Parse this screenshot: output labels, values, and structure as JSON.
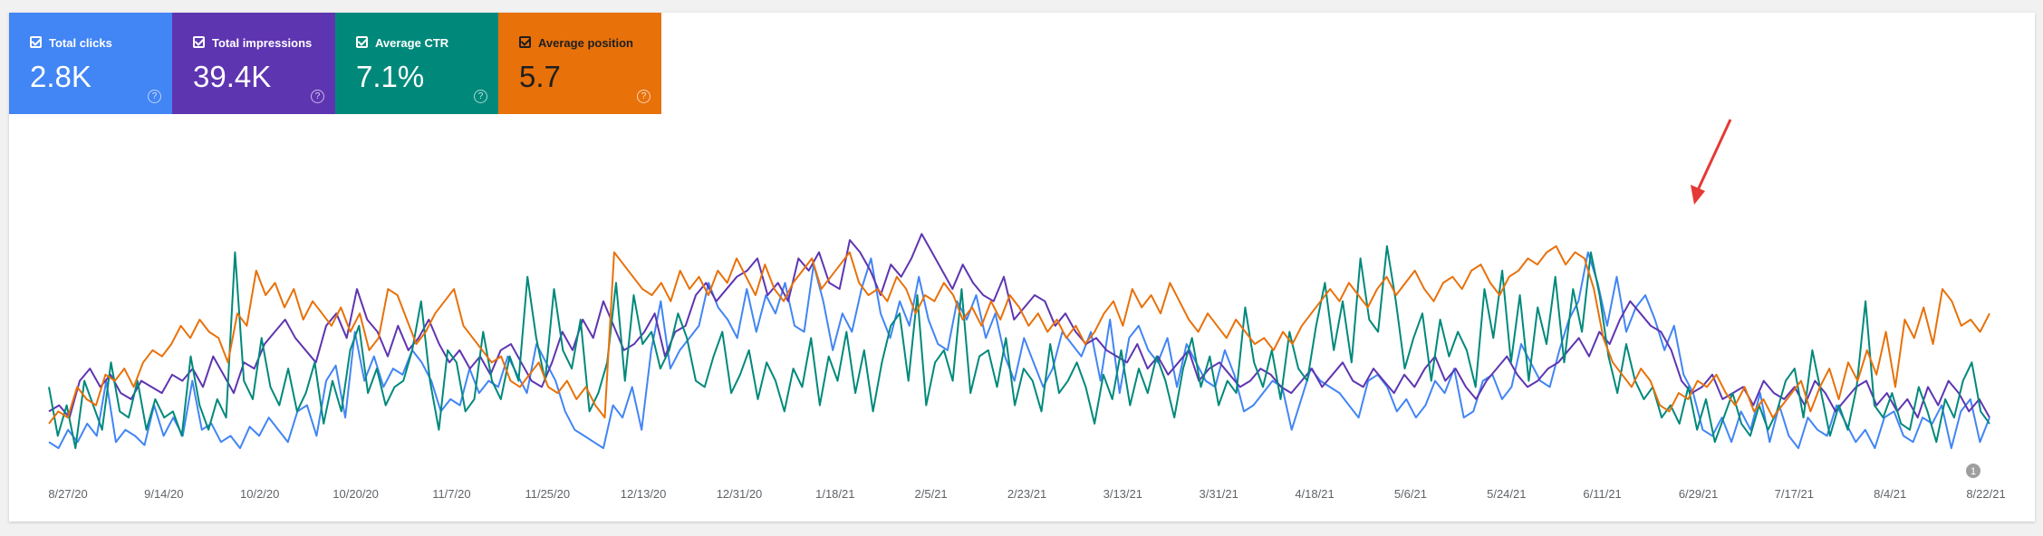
{
  "metrics": [
    {
      "label": "Total clicks",
      "value": "2.8K",
      "color": "#4285f4"
    },
    {
      "label": "Total impressions",
      "value": "39.4K",
      "color": "#5e35b1"
    },
    {
      "label": "Average CTR",
      "value": "7.1%",
      "color": "#00897b"
    },
    {
      "label": "Average position",
      "value": "5.7",
      "color": "#e8710a"
    }
  ],
  "help_icon": "?",
  "annotation_badge": "1",
  "chart_data": {
    "type": "line",
    "x_ticks": [
      "8/27/20",
      "9/14/20",
      "10/2/20",
      "10/20/20",
      "11/7/20",
      "11/25/20",
      "12/13/20",
      "12/31/20",
      "1/18/21",
      "2/5/21",
      "2/23/21",
      "3/13/21",
      "3/31/21",
      "4/18/21",
      "5/6/21",
      "5/24/21",
      "6/11/21",
      "6/29/21",
      "7/17/21",
      "8/4/21",
      "8/22/21"
    ],
    "y_axis_visible": false,
    "grid": false,
    "legend": "metric cards above chart",
    "scale": "relative (0-100, no axis values shown)",
    "ylim": [
      0,
      100
    ],
    "series": [
      {
        "metric": "Total clicks",
        "color": "#4285f4",
        "values": [
          10,
          8,
          14,
          10,
          16,
          12,
          30,
          10,
          14,
          12,
          9,
          22,
          12,
          18,
          12,
          30,
          14,
          16,
          10,
          12,
          8,
          15,
          12,
          18,
          14,
          10,
          20,
          22,
          12,
          30,
          35,
          18,
          46,
          30,
          38,
          28,
          34,
          32,
          40,
          36,
          30,
          20,
          24,
          22,
          34,
          26,
          30,
          28,
          38,
          32,
          26,
          42,
          36,
          30,
          20,
          14,
          12,
          10,
          8,
          22,
          18,
          28,
          14,
          40,
          56,
          34,
          40,
          44,
          48,
          62,
          54,
          50,
          44,
          60,
          46,
          58,
          52,
          62,
          48,
          46,
          68,
          56,
          40,
          52,
          46,
          60,
          70,
          52,
          44,
          56,
          48,
          64,
          50,
          42,
          40,
          56,
          50,
          58,
          44,
          52,
          38,
          30,
          44,
          36,
          28,
          34,
          46,
          42,
          38,
          46,
          30,
          50,
          26,
          44,
          48,
          40,
          36,
          44,
          28,
          42,
          36,
          30,
          28,
          40,
          32,
          20,
          22,
          26,
          30,
          28,
          14,
          24,
          34,
          30,
          28,
          26,
          22,
          18,
          30,
          32,
          28,
          20,
          24,
          18,
          22,
          30,
          26,
          34,
          18,
          20,
          30,
          32,
          24,
          28,
          42,
          36,
          30,
          28,
          40,
          50,
          56,
          72,
          62,
          48,
          64,
          46,
          54,
          58,
          50,
          40,
          48,
          32,
          26,
          14,
          12,
          18,
          10,
          20,
          14,
          26,
          10,
          22,
          12,
          8,
          18,
          14,
          12,
          22,
          16,
          10,
          14,
          8,
          18,
          20,
          12,
          10,
          18,
          16,
          22,
          8,
          20,
          24,
          10,
          18
        ]
      },
      {
        "metric": "Total impressions",
        "color": "#5e35b1",
        "values": [
          20,
          22,
          18,
          30,
          34,
          28,
          32,
          26,
          24,
          30,
          28,
          26,
          32,
          30,
          34,
          28,
          38,
          32,
          26,
          36,
          34,
          42,
          46,
          50,
          44,
          40,
          36,
          48,
          52,
          44,
          60,
          50,
          46,
          38,
          48,
          40,
          44,
          50,
          42,
          36,
          40,
          34,
          38,
          32,
          40,
          42,
          36,
          30,
          28,
          36,
          46,
          40,
          50,
          44,
          56,
          48,
          40,
          42,
          46,
          52,
          38,
          46,
          48,
          58,
          62,
          56,
          60,
          64,
          66,
          70,
          58,
          62,
          56,
          70,
          66,
          72,
          62,
          60,
          76,
          72,
          66,
          58,
          68,
          64,
          70,
          78,
          72,
          66,
          60,
          68,
          62,
          58,
          56,
          64,
          50,
          54,
          58,
          56,
          48,
          52,
          46,
          42,
          44,
          40,
          38,
          36,
          42,
          34,
          38,
          32,
          36,
          40,
          30,
          34,
          36,
          32,
          28,
          30,
          34,
          32,
          28,
          26,
          30,
          34,
          28,
          32,
          36,
          30,
          28,
          34,
          30,
          26,
          32,
          28,
          34,
          38,
          30,
          34,
          28,
          24,
          30,
          34,
          38,
          32,
          28,
          30,
          34,
          36,
          40,
          44,
          38,
          46,
          42,
          50,
          56,
          52,
          48,
          46,
          40,
          30,
          26,
          28,
          32,
          24,
          26,
          28,
          22,
          30,
          26,
          24,
          28,
          22,
          30,
          26,
          20,
          24,
          28,
          30,
          22,
          26,
          20,
          24,
          18,
          28,
          22,
          30,
          26,
          20,
          24,
          18
        ]
      },
      {
        "metric": "Average CTR",
        "color": "#00897b",
        "values": [
          28,
          12,
          22,
          8,
          30,
          22,
          14,
          36,
          20,
          18,
          30,
          14,
          24,
          18,
          20,
          12,
          38,
          22,
          14,
          24,
          18,
          72,
          30,
          24,
          44,
          28,
          22,
          34,
          20,
          26,
          36,
          16,
          30,
          20,
          40,
          48,
          26,
          34,
          22,
          28,
          30,
          40,
          56,
          30,
          14,
          40,
          36,
          20,
          24,
          46,
          30,
          24,
          38,
          30,
          64,
          44,
          30,
          60,
          40,
          34,
          50,
          20,
          26,
          36,
          62,
          30,
          58,
          42,
          46,
          34,
          40,
          52,
          44,
          30,
          28,
          38,
          46,
          26,
          32,
          40,
          24,
          36,
          30,
          20,
          34,
          28,
          44,
          22,
          38,
          30,
          46,
          26,
          40,
          20,
          36,
          48,
          52,
          30,
          58,
          22,
          36,
          40,
          30,
          60,
          26,
          38,
          40,
          28,
          44,
          22,
          34,
          30,
          20,
          42,
          26,
          30,
          36,
          28,
          16,
          32,
          24,
          40,
          22,
          34,
          26,
          38,
          30,
          18,
          34,
          44,
          28,
          38,
          22,
          30,
          26,
          54,
          36,
          28,
          40,
          24,
          46,
          34,
          30,
          48,
          62,
          40,
          56,
          36,
          70,
          50,
          46,
          74,
          56,
          34,
          44,
          52,
          30,
          50,
          38,
          46,
          40,
          28,
          60,
          44,
          66,
          36,
          58,
          30,
          54,
          42,
          64,
          36,
          60,
          46,
          72,
          58,
          38,
          26,
          42,
          30,
          24,
          28,
          18,
          22,
          16,
          28,
          14,
          24,
          10,
          18,
          26,
          16,
          12,
          22,
          14,
          20,
          30,
          34,
          18,
          40,
          26,
          12,
          22,
          14,
          28,
          56,
          22,
          18,
          26,
          16,
          14,
          28,
          20,
          10,
          24,
          18,
          30,
          36,
          20,
          16
        ]
      },
      {
        "metric": "Average position",
        "color": "#e8710a",
        "values": [
          16,
          20,
          18,
          28,
          24,
          22,
          32,
          30,
          34,
          28,
          36,
          40,
          38,
          42,
          48,
          44,
          50,
          46,
          44,
          36,
          52,
          48,
          66,
          58,
          62,
          54,
          60,
          50,
          56,
          52,
          48,
          54,
          46,
          52,
          40,
          44,
          60,
          58,
          50,
          42,
          46,
          52,
          56,
          60,
          48,
          44,
          40,
          36,
          38,
          30,
          28,
          32,
          36,
          28,
          26,
          30,
          24,
          28,
          22,
          18,
          72,
          68,
          64,
          60,
          58,
          62,
          56,
          66,
          60,
          64,
          58,
          66,
          62,
          70,
          64,
          58,
          68,
          60,
          56,
          62,
          66,
          70,
          60,
          64,
          68,
          72,
          62,
          58,
          60,
          56,
          64,
          60,
          52,
          58,
          56,
          62,
          58,
          50,
          54,
          48,
          56,
          50,
          58,
          54,
          48,
          52,
          46,
          50,
          44,
          48,
          42,
          46,
          52,
          56,
          48,
          60,
          54,
          58,
          52,
          62,
          56,
          50,
          46,
          52,
          48,
          44,
          50,
          46,
          42,
          44,
          40,
          46,
          42,
          48,
          52,
          56,
          60,
          56,
          62,
          58,
          54,
          60,
          64,
          58,
          62,
          66,
          60,
          56,
          62,
          64,
          60,
          66,
          68,
          62,
          58,
          64,
          66,
          70,
          68,
          72,
          74,
          68,
          72,
          70,
          60,
          44,
          36,
          32,
          28,
          34,
          30,
          22,
          20,
          26,
          24,
          30,
          28,
          32,
          26,
          22,
          28,
          20,
          24,
          18,
          22,
          26,
          30,
          20,
          28,
          34,
          24,
          36,
          30,
          40,
          32,
          46,
          28,
          50,
          44,
          54,
          42,
          60,
          56,
          48,
          50,
          46,
          52
        ]
      }
    ]
  }
}
